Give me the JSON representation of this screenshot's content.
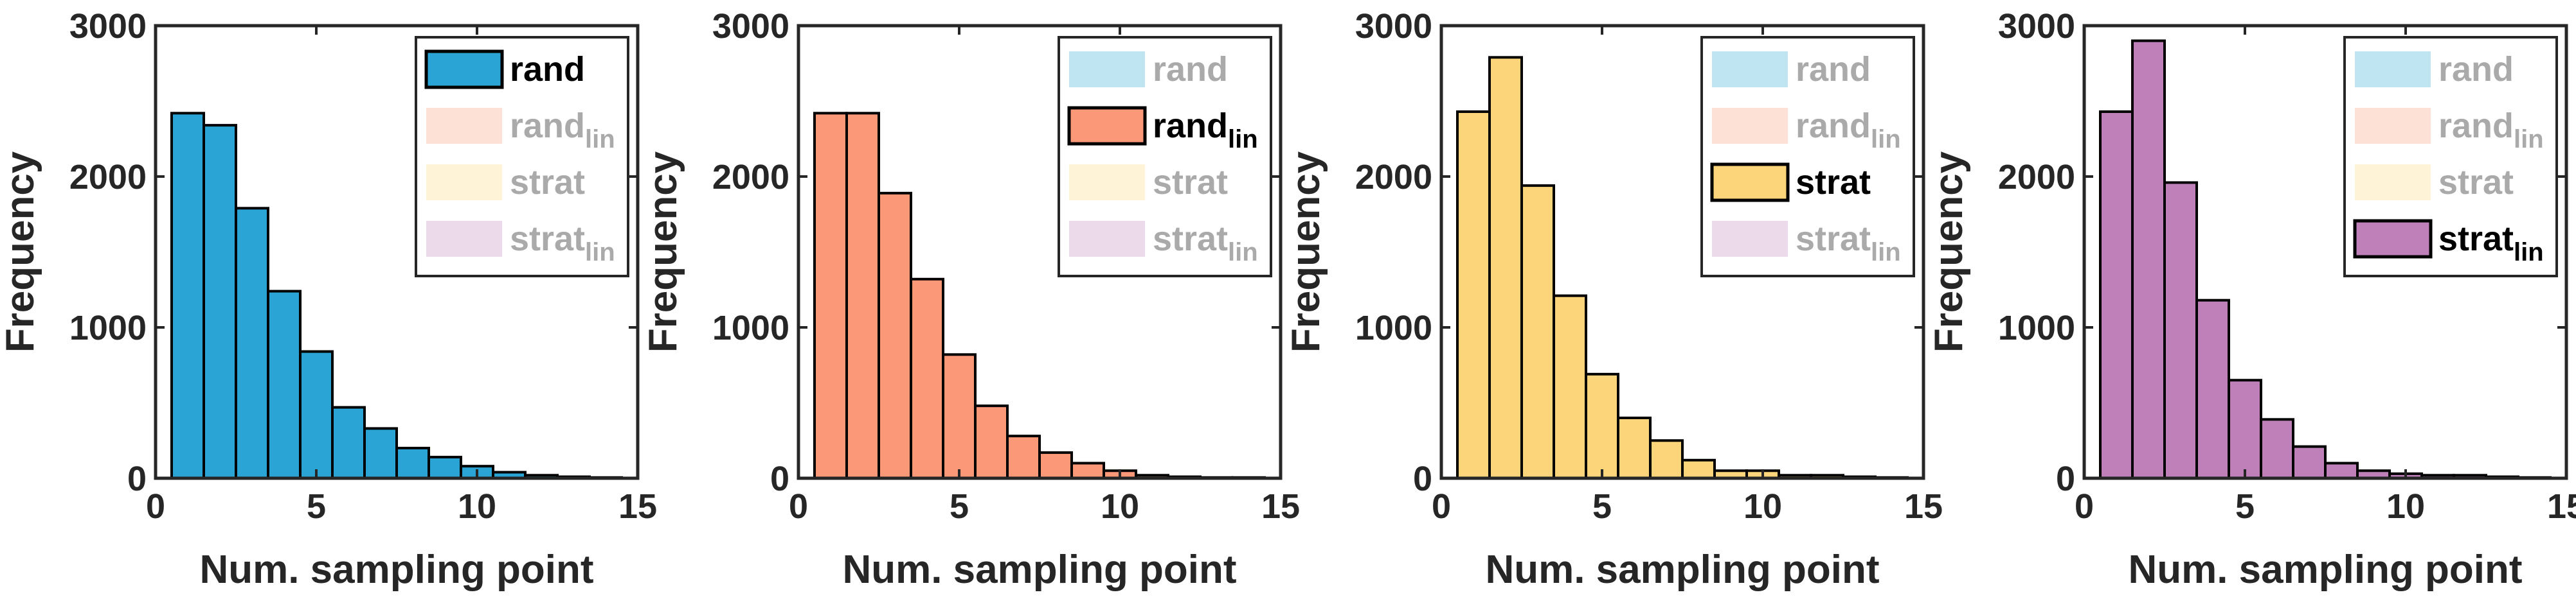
{
  "chart_data": [
    {
      "type": "bar",
      "name": "rand",
      "active_series": 0,
      "x": [
        1,
        2,
        3,
        4,
        5,
        6,
        7,
        8,
        9,
        10,
        11,
        12,
        13,
        14
      ],
      "values": [
        2420,
        2340,
        1790,
        1240,
        840,
        470,
        330,
        200,
        140,
        80,
        40,
        20,
        10,
        5
      ],
      "xlabel": "Num. sampling point",
      "ylabel": "Frequency",
      "xlim": [
        0,
        15
      ],
      "ylim": [
        0,
        3000
      ],
      "xticks": [
        0,
        5,
        10,
        15
      ],
      "yticks": [
        0,
        1000,
        2000,
        3000
      ],
      "legend_position": "top-right"
    },
    {
      "type": "bar",
      "name": "rand_lin",
      "active_series": 1,
      "x": [
        1,
        2,
        3,
        4,
        5,
        6,
        7,
        8,
        9,
        10,
        11,
        12,
        13,
        14
      ],
      "values": [
        2420,
        2420,
        1890,
        1320,
        820,
        480,
        280,
        170,
        100,
        50,
        20,
        10,
        5,
        5
      ],
      "xlabel": "Num. sampling point",
      "ylabel": "Frequency",
      "xlim": [
        0,
        15
      ],
      "ylim": [
        0,
        3000
      ],
      "xticks": [
        0,
        5,
        10,
        15
      ],
      "yticks": [
        0,
        1000,
        2000,
        3000
      ],
      "legend_position": "top-right"
    },
    {
      "type": "bar",
      "name": "strat",
      "active_series": 2,
      "x": [
        1,
        2,
        3,
        4,
        5,
        6,
        7,
        8,
        9,
        10,
        11,
        12,
        13,
        14
      ],
      "values": [
        2430,
        2790,
        1940,
        1210,
        690,
        400,
        250,
        120,
        50,
        50,
        20,
        20,
        10,
        5
      ],
      "xlabel": "Num. sampling point",
      "ylabel": "Frequency",
      "xlim": [
        0,
        15
      ],
      "ylim": [
        0,
        3000
      ],
      "xticks": [
        0,
        5,
        10,
        15
      ],
      "yticks": [
        0,
        1000,
        2000,
        3000
      ],
      "legend_position": "top-right"
    },
    {
      "type": "bar",
      "name": "strat_lin",
      "active_series": 3,
      "x": [
        1,
        2,
        3,
        4,
        5,
        6,
        7,
        8,
        9,
        10,
        11,
        12,
        13,
        14
      ],
      "values": [
        2430,
        2900,
        1960,
        1180,
        650,
        390,
        210,
        100,
        50,
        30,
        20,
        20,
        10,
        5
      ],
      "xlabel": "Num. sampling point",
      "ylabel": "Frequency",
      "xlim": [
        0,
        15
      ],
      "ylim": [
        0,
        3000
      ],
      "xticks": [
        0,
        5,
        10,
        15
      ],
      "yticks": [
        0,
        1000,
        2000,
        3000
      ],
      "legend_position": "top-right"
    }
  ],
  "legend": [
    {
      "main": "rand",
      "sub": "",
      "color": "#2AA4D5"
    },
    {
      "main": "rand",
      "sub": "lin",
      "color": "#FA9878"
    },
    {
      "main": "strat",
      "sub": "",
      "color": "#FCD479"
    },
    {
      "main": "strat",
      "sub": "lin",
      "color": "#BF80BA"
    }
  ],
  "styles": {
    "axis_color": "#262626",
    "edge_color": "#000000",
    "inactive_text_color": "#AAAAAA",
    "inactive_opacity": 0.3
  }
}
